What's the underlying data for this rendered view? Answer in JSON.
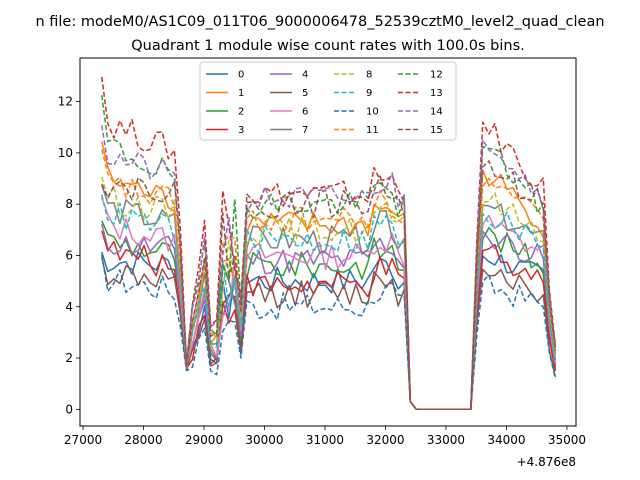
{
  "chart_data": {
    "type": "line",
    "suptitle": "n file: modeM0/AS1C09_011T06_9000006478_52539cztM0_level2_quad_clean",
    "title": "Quadrant 1 module wise count rates with 100.0s bins.",
    "xlabel": "",
    "ylabel": "",
    "x_offset_label": "+4.876e8",
    "xlim": [
      26950,
      35150
    ],
    "ylim": [
      -0.65,
      13.7
    ],
    "x_ticks": [
      27000,
      28000,
      29000,
      30000,
      31000,
      32000,
      33000,
      34000,
      35000
    ],
    "x_tick_labels": [
      "27000",
      "28000",
      "29000",
      "30000",
      "31000",
      "32000",
      "33000",
      "34000",
      "35000"
    ],
    "y_ticks": [
      0,
      2,
      4,
      6,
      8,
      10,
      12
    ],
    "y_tick_labels": [
      "0",
      "2",
      "4",
      "6",
      "8",
      "10",
      "12"
    ],
    "grid": false,
    "legend_position": "upper-center",
    "colors": [
      "#1f77b4",
      "#ff7f0e",
      "#2ca02c",
      "#d62728",
      "#9467bd",
      "#8c564b",
      "#e377c2",
      "#7f7f7f",
      "#bcbd22",
      "#17becf",
      "#1f77b4",
      "#ff7f0e",
      "#2ca02c",
      "#d62728",
      "#9467bd",
      "#8c564b"
    ],
    "legend_entries": [
      "0",
      "1",
      "2",
      "3",
      "4",
      "5",
      "6",
      "7",
      "8",
      "9",
      "10",
      "11",
      "12",
      "13",
      "14",
      "15"
    ],
    "series": [
      {
        "name": "0",
        "style": "solid",
        "start_level": 6.1,
        "plateau1": 5.6,
        "plateau2": 5.0,
        "end_level": 5.0,
        "peak2": 6.0
      },
      {
        "name": "1",
        "style": "solid",
        "start_level": 10.5,
        "plateau1": 8.0,
        "plateau2": 7.2,
        "end_level": 7.0,
        "peak2": 9.2
      },
      {
        "name": "2",
        "style": "solid",
        "start_level": 7.5,
        "plateau1": 6.0,
        "plateau2": 5.6,
        "end_level": 5.5,
        "peak2": 6.8
      },
      {
        "name": "3",
        "style": "solid",
        "start_level": 7.2,
        "plateau1": 5.5,
        "plateau2": 4.8,
        "end_level": 5.0,
        "peak2": 6.2
      },
      {
        "name": "4",
        "style": "solid",
        "start_level": 7.0,
        "plateau1": 6.2,
        "plateau2": 5.8,
        "end_level": 5.8,
        "peak2": 6.8
      },
      {
        "name": "5",
        "style": "solid",
        "start_level": 5.8,
        "plateau1": 5.0,
        "plateau2": 4.5,
        "end_level": 4.2,
        "peak2": 5.6
      },
      {
        "name": "6",
        "style": "solid",
        "start_level": 8.2,
        "plateau1": 6.5,
        "plateau2": 6.0,
        "end_level": 6.0,
        "peak2": 7.2
      },
      {
        "name": "7",
        "style": "solid",
        "start_level": 8.8,
        "plateau1": 7.2,
        "plateau2": 6.6,
        "end_level": 6.4,
        "peak2": 7.8
      },
      {
        "name": "8",
        "style": "dashed",
        "start_level": 9.2,
        "plateau1": 7.6,
        "plateau2": 7.0,
        "end_level": 6.8,
        "peak2": 8.2
      },
      {
        "name": "9",
        "style": "dashed",
        "start_level": 8.6,
        "plateau1": 7.0,
        "plateau2": 6.6,
        "end_level": 6.4,
        "peak2": 7.6
      },
      {
        "name": "10",
        "style": "dashed",
        "start_level": 5.8,
        "plateau1": 4.6,
        "plateau2": 4.0,
        "end_level": 4.0,
        "peak2": 4.8
      },
      {
        "name": "11",
        "style": "dashed",
        "start_level": 10.0,
        "plateau1": 8.0,
        "plateau2": 7.4,
        "end_level": 7.2,
        "peak2": 8.8
      },
      {
        "name": "12",
        "style": "dashed",
        "start_level": 12.2,
        "plateau1": 9.0,
        "plateau2": 8.0,
        "end_level": 7.6,
        "peak2": 10.2
      },
      {
        "name": "13",
        "style": "dashed",
        "start_level": 13.0,
        "plateau1": 10.0,
        "plateau2": 8.4,
        "end_level": 8.4,
        "peak2": 11.0
      },
      {
        "name": "14",
        "style": "dashed",
        "start_level": 11.2,
        "plateau1": 9.0,
        "plateau2": 8.2,
        "end_level": 8.0,
        "peak2": 10.6
      },
      {
        "name": "15",
        "style": "dashed",
        "start_level": 9.0,
        "plateau1": 8.6,
        "plateau2": 8.0,
        "end_level": 8.0,
        "peak2": 9.4
      }
    ]
  }
}
